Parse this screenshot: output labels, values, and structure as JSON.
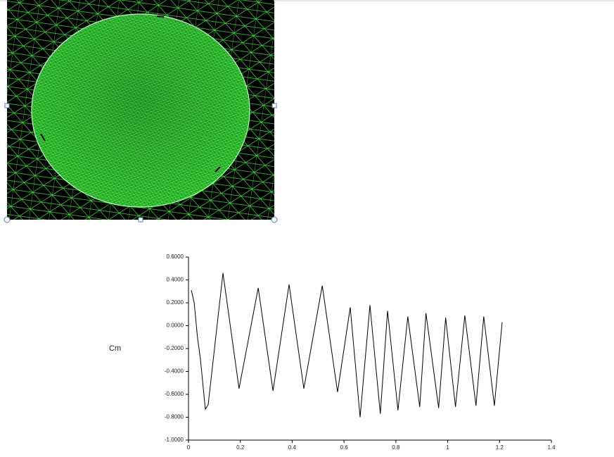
{
  "chart_data": {
    "type": "line",
    "ylabel": "Cm",
    "x": [
      0.011,
      0.022,
      0.035,
      0.046,
      0.065,
      0.076,
      0.133,
      0.195,
      0.269,
      0.326,
      0.388,
      0.445,
      0.516,
      0.575,
      0.624,
      0.662,
      0.7,
      0.74,
      0.768,
      0.808,
      0.846,
      0.892,
      0.916,
      0.965,
      0.992,
      1.03,
      1.066,
      1.109,
      1.139,
      1.18,
      1.21
    ],
    "values": [
      0.31,
      0.2,
      -0.11,
      -0.29,
      -0.73,
      -0.69,
      0.46,
      -0.55,
      0.33,
      -0.57,
      0.36,
      -0.55,
      0.35,
      -0.58,
      0.16,
      -0.8,
      0.18,
      -0.77,
      0.13,
      -0.74,
      0.08,
      -0.71,
      0.11,
      -0.72,
      0.07,
      -0.71,
      0.09,
      -0.7,
      0.08,
      -0.7,
      0.03
    ],
    "color": "#000000",
    "xlim": [
      0,
      1.4
    ],
    "xticks": [
      0,
      0.2,
      0.4,
      0.6,
      0.8,
      1,
      1.2,
      1.4
    ],
    "ylim": [
      -1,
      0.6
    ],
    "yticks": [
      {
        "value": 0.6,
        "label": "0.6000"
      },
      {
        "value": 0.4,
        "label": "0.4000"
      },
      {
        "value": 0.2,
        "label": "0.2000"
      },
      {
        "value": 0,
        "label": "0.0000"
      },
      {
        "value": -0.2,
        "label": "-0.2000"
      },
      {
        "value": -0.4,
        "label": "-0.4000"
      },
      {
        "value": -0.6,
        "label": "-0.6000"
      },
      {
        "value": -0.8,
        "label": "-0.8000"
      },
      {
        "value": -1,
        "label": "-1.0000"
      }
    ],
    "grid": false
  }
}
